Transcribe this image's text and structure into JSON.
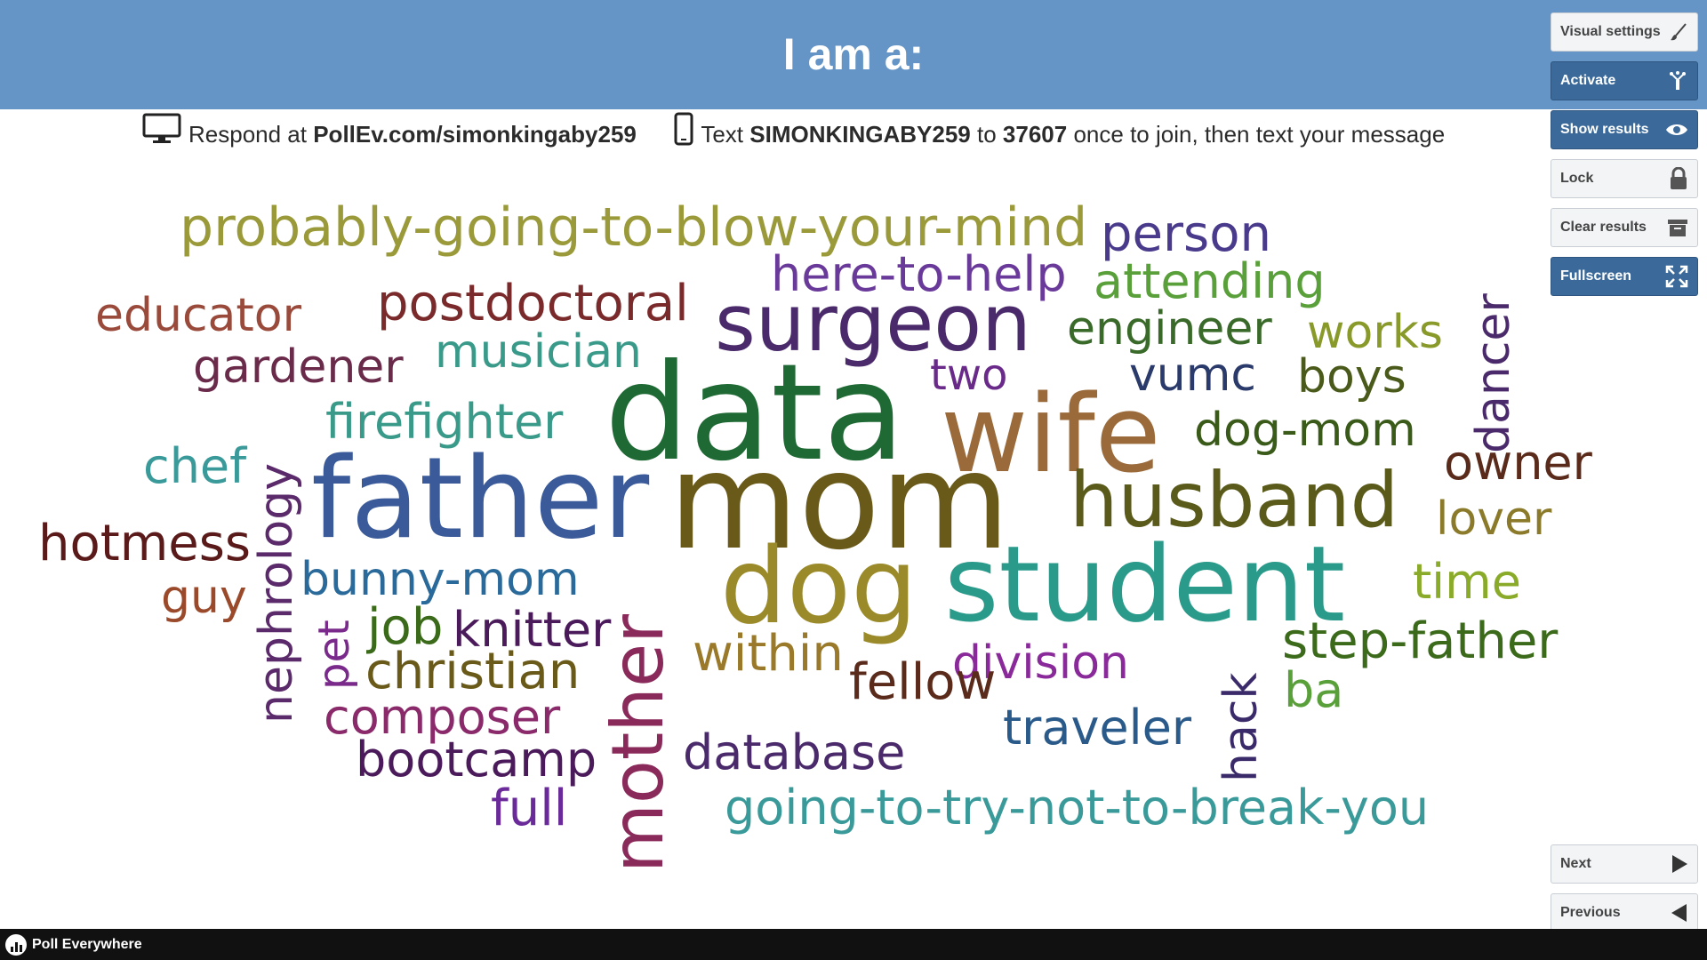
{
  "header": {
    "title": "I am a:"
  },
  "instructions": {
    "respond_prefix": "Respond at",
    "url": "PollEv.com/simonkingaby259",
    "text_prefix": "Text",
    "code": "SIMONKINGABY259",
    "to": "to",
    "number": "37607",
    "suffix": "once to join, then text your message"
  },
  "sidebar": {
    "visual_settings": "Visual settings",
    "activate": "Activate",
    "show_results": "Show results",
    "lock": "Lock",
    "clear_results": "Clear results",
    "fullscreen": "Fullscreen",
    "next": "Next",
    "previous": "Previous"
  },
  "footer": {
    "brand": "Poll Everywhere"
  },
  "word_cloud": [
    {
      "text": "probably-going-to-blow-your-mind",
      "color": "#9a9a3a"
    },
    {
      "text": "person",
      "color": "#4a3a8c"
    },
    {
      "text": "here-to-help",
      "color": "#6a3a9a"
    },
    {
      "text": "attending",
      "color": "#5aa03a"
    },
    {
      "text": "educator",
      "color": "#9a4a3a"
    },
    {
      "text": "postdoctoral",
      "color": "#7a2a2a"
    },
    {
      "text": "surgeon",
      "color": "#4a2a6a"
    },
    {
      "text": "engineer",
      "color": "#3a6a2a"
    },
    {
      "text": "works",
      "color": "#8a9a2a"
    },
    {
      "text": "dancer",
      "color": "#4a2a6a"
    },
    {
      "text": "gardener",
      "color": "#6a2a4a"
    },
    {
      "text": "musician",
      "color": "#3a9a8a"
    },
    {
      "text": "two",
      "color": "#6a2a8a"
    },
    {
      "text": "vumc",
      "color": "#2a3a6a"
    },
    {
      "text": "boys",
      "color": "#4a5a1a"
    },
    {
      "text": "data",
      "color": "#1f6a34"
    },
    {
      "text": "wife",
      "color": "#9a6a3a"
    },
    {
      "text": "firefighter",
      "color": "#3a9a8a"
    },
    {
      "text": "dog-mom",
      "color": "#3a5a1a"
    },
    {
      "text": "chef",
      "color": "#3a9a9a"
    },
    {
      "text": "nephrology",
      "color": "#5a2a6a"
    },
    {
      "text": "owner",
      "color": "#5a2a1a"
    },
    {
      "text": "father",
      "color": "#3a5a9a"
    },
    {
      "text": "mom",
      "color": "#6a5a1a"
    },
    {
      "text": "husband",
      "color": "#5a5a1a"
    },
    {
      "text": "lover",
      "color": "#8a7a2a"
    },
    {
      "text": "hotmess",
      "color": "#5a1a1a"
    },
    {
      "text": "bunny-mom",
      "color": "#2a6a9a"
    },
    {
      "text": "mother",
      "color": "#8a2a5a"
    },
    {
      "text": "dog",
      "color": "#9a8a2a"
    },
    {
      "text": "student",
      "color": "#2a9a8a"
    },
    {
      "text": "time",
      "color": "#8aaa2a"
    },
    {
      "text": "guy",
      "color": "#9a4a2a"
    },
    {
      "text": "pet",
      "color": "#7a2a8a"
    },
    {
      "text": "job",
      "color": "#3a6a1a"
    },
    {
      "text": "knitter",
      "color": "#4a1a5a"
    },
    {
      "text": "within",
      "color": "#9a7a2a"
    },
    {
      "text": "division",
      "color": "#8a2a9a"
    },
    {
      "text": "hack",
      "color": "#3a2a6a"
    },
    {
      "text": "step-father",
      "color": "#3a6a1a"
    },
    {
      "text": "christian",
      "color": "#6a5a1a"
    },
    {
      "text": "fellow",
      "color": "#5a2a1a"
    },
    {
      "text": "ba",
      "color": "#5aa03a"
    },
    {
      "text": "composer",
      "color": "#8a2a6a"
    },
    {
      "text": "traveler",
      "color": "#2a5a8a"
    },
    {
      "text": "bootcamp",
      "color": "#4a1a5a"
    },
    {
      "text": "database",
      "color": "#4a2a6a"
    },
    {
      "text": "full",
      "color": "#6a2a9a"
    },
    {
      "text": "going-to-try-not-to-break-you",
      "color": "#3a9a9a"
    }
  ]
}
